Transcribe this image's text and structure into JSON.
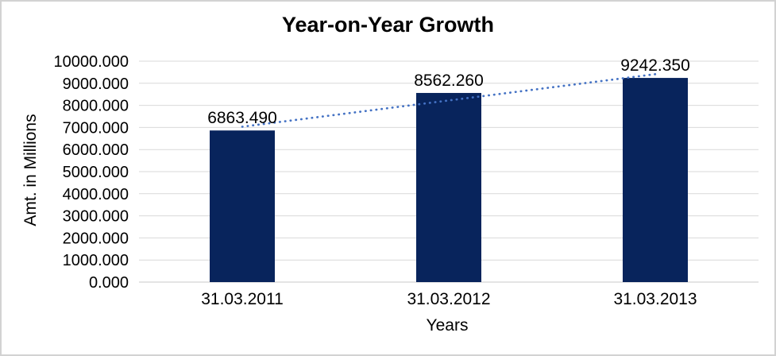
{
  "chart_data": {
    "type": "bar",
    "title": "Year-on-Year Growth",
    "xlabel": "Years",
    "ylabel": "Amt. in Millions",
    "categories": [
      "31.03.2011",
      "31.03.2012",
      "31.03.2013"
    ],
    "values": [
      6863.49,
      8562.26,
      9242.35
    ],
    "data_labels": [
      "6863.490",
      "8562.260",
      "9242.350"
    ],
    "y_tick_labels": [
      "10000.000",
      "9000.000",
      "8000.000",
      "7000.000",
      "6000.000",
      "5000.000",
      "4000.000",
      "3000.000",
      "2000.000",
      "1000.000",
      "0.000"
    ],
    "ylim": [
      0,
      10000
    ],
    "y_step": 1000,
    "grid": true,
    "legend": "none",
    "trendline": {
      "type": "linear",
      "style": "dotted"
    },
    "colors": {
      "bar": "#08245c",
      "trendline": "#4472c4",
      "gridline": "#d9d9d9",
      "axisline": "#c9c9c9",
      "text": "#000000",
      "frame_border": "#d2d2d2",
      "background": "#ffffff"
    }
  }
}
